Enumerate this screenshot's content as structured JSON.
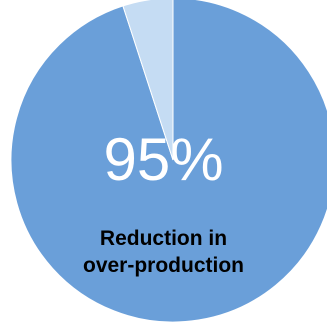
{
  "chart_data": {
    "type": "pie",
    "categories": [
      "Reduction in over-production",
      ""
    ],
    "values": [
      95,
      5
    ],
    "colors": [
      "#6A9FD9",
      "#C5DCF3"
    ],
    "center_value": "95%",
    "center_label_lines": [
      "Reduction in",
      "over-production"
    ]
  }
}
